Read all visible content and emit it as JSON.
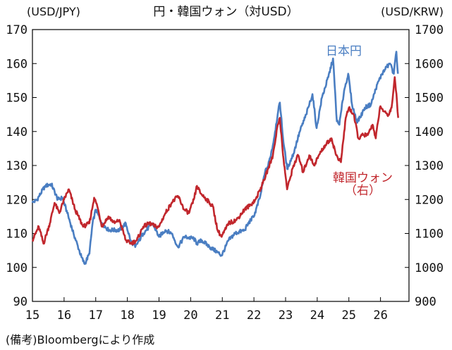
{
  "title": "円・韓国ウォン（対USD）",
  "source": "(備考)Bloombergにより作成",
  "colors": {
    "jpy": "#4a7ec2",
    "krw": "#c1272d",
    "axis": "#000000"
  },
  "chart_data": {
    "type": "line",
    "title": "円・韓国ウォン（対USD）",
    "y_left_label": "(USD/JPY)",
    "y_right_label": "(USD/KRW)",
    "xlim": [
      2015.0,
      2026.9
    ],
    "x_ticks": [
      2015,
      2016,
      2017,
      2018,
      2019,
      2020,
      2021,
      2022,
      2023,
      2024,
      2025,
      2026
    ],
    "x_tick_labels": [
      "15",
      "16",
      "17",
      "18",
      "19",
      "20",
      "21",
      "22",
      "23",
      "24",
      "25",
      "26"
    ],
    "y_left_lim": [
      90,
      170
    ],
    "y_left_ticks": [
      90,
      100,
      110,
      120,
      130,
      140,
      150,
      160,
      170
    ],
    "y_right_lim": [
      900,
      1700
    ],
    "y_right_ticks": [
      900,
      1000,
      1100,
      1200,
      1300,
      1400,
      1500,
      1600,
      1700
    ],
    "grid": false,
    "series": [
      {
        "name": "日本円",
        "axis": "left",
        "color": "#4a7ec2",
        "points": [
          [
            2015.0,
            119.0
          ],
          [
            2015.15,
            120.0
          ],
          [
            2015.4,
            124.0
          ],
          [
            2015.6,
            124.5
          ],
          [
            2015.8,
            120.0
          ],
          [
            2015.95,
            120.5
          ],
          [
            2016.1,
            116.0
          ],
          [
            2016.3,
            110.0
          ],
          [
            2016.55,
            103.0
          ],
          [
            2016.65,
            101.0
          ],
          [
            2016.8,
            104.0
          ],
          [
            2016.9,
            113.0
          ],
          [
            2017.0,
            117.0
          ],
          [
            2017.2,
            113.0
          ],
          [
            2017.4,
            111.0
          ],
          [
            2017.6,
            111.0
          ],
          [
            2017.75,
            111.0
          ],
          [
            2017.95,
            113.0
          ],
          [
            2018.1,
            108.0
          ],
          [
            2018.25,
            106.0
          ],
          [
            2018.5,
            110.0
          ],
          [
            2018.8,
            113.0
          ],
          [
            2019.0,
            109.0
          ],
          [
            2019.2,
            111.0
          ],
          [
            2019.4,
            110.0
          ],
          [
            2019.6,
            106.0
          ],
          [
            2019.8,
            109.0
          ],
          [
            2020.1,
            108.5
          ],
          [
            2020.2,
            107.0
          ],
          [
            2020.35,
            108.0
          ],
          [
            2020.6,
            106.0
          ],
          [
            2020.85,
            104.5
          ],
          [
            2020.98,
            103.5
          ],
          [
            2021.2,
            108.0
          ],
          [
            2021.4,
            110.0
          ],
          [
            2021.7,
            111.0
          ],
          [
            2021.9,
            114.0
          ],
          [
            2022.0,
            115.0
          ],
          [
            2022.2,
            121.0
          ],
          [
            2022.35,
            128.0
          ],
          [
            2022.45,
            130.0
          ],
          [
            2022.6,
            136.0
          ],
          [
            2022.75,
            145.0
          ],
          [
            2022.82,
            148.5
          ],
          [
            2022.92,
            138.0
          ],
          [
            2023.05,
            129.0
          ],
          [
            2023.25,
            133.5
          ],
          [
            2023.45,
            140.0
          ],
          [
            2023.65,
            145.0
          ],
          [
            2023.85,
            151.0
          ],
          [
            2023.98,
            141.0
          ],
          [
            2024.15,
            150.0
          ],
          [
            2024.35,
            156.0
          ],
          [
            2024.5,
            161.5
          ],
          [
            2024.62,
            143.0
          ],
          [
            2024.7,
            142.0
          ],
          [
            2024.85,
            152.0
          ],
          [
            2024.98,
            157.0
          ],
          [
            2025.1,
            148.0
          ],
          [
            2025.25,
            143.0
          ],
          [
            2025.35,
            144.0
          ],
          [
            2025.5,
            147.0
          ],
          [
            2025.7,
            148.0
          ],
          [
            2025.9,
            154.0
          ],
          [
            2026.05,
            157.0
          ],
          [
            2026.2,
            159.0
          ],
          [
            2026.3,
            160.0
          ],
          [
            2026.42,
            157.0
          ],
          [
            2026.5,
            163.5
          ],
          [
            2026.55,
            157.0
          ]
        ]
      },
      {
        "name": "韓国ウォン（右）",
        "axis": "right",
        "color": "#c1272d",
        "points": [
          [
            2015.0,
            1080
          ],
          [
            2015.2,
            1120
          ],
          [
            2015.35,
            1070
          ],
          [
            2015.55,
            1130
          ],
          [
            2015.7,
            1190
          ],
          [
            2015.85,
            1160
          ],
          [
            2016.0,
            1200
          ],
          [
            2016.15,
            1230
          ],
          [
            2016.35,
            1170
          ],
          [
            2016.6,
            1120
          ],
          [
            2016.8,
            1130
          ],
          [
            2016.95,
            1205
          ],
          [
            2017.05,
            1180
          ],
          [
            2017.2,
            1120
          ],
          [
            2017.4,
            1150
          ],
          [
            2017.6,
            1130
          ],
          [
            2017.75,
            1140
          ],
          [
            2017.95,
            1080
          ],
          [
            2018.1,
            1070
          ],
          [
            2018.3,
            1080
          ],
          [
            2018.5,
            1120
          ],
          [
            2018.7,
            1130
          ],
          [
            2018.9,
            1120
          ],
          [
            2019.0,
            1120
          ],
          [
            2019.2,
            1160
          ],
          [
            2019.4,
            1190
          ],
          [
            2019.6,
            1210
          ],
          [
            2019.8,
            1170
          ],
          [
            2019.95,
            1160
          ],
          [
            2020.1,
            1200
          ],
          [
            2020.2,
            1240
          ],
          [
            2020.3,
            1220
          ],
          [
            2020.5,
            1200
          ],
          [
            2020.7,
            1180
          ],
          [
            2020.85,
            1110
          ],
          [
            2020.98,
            1090
          ],
          [
            2021.2,
            1130
          ],
          [
            2021.45,
            1140
          ],
          [
            2021.7,
            1170
          ],
          [
            2021.9,
            1185
          ],
          [
            2022.05,
            1200
          ],
          [
            2022.25,
            1240
          ],
          [
            2022.45,
            1290
          ],
          [
            2022.6,
            1330
          ],
          [
            2022.75,
            1420
          ],
          [
            2022.82,
            1440
          ],
          [
            2022.92,
            1330
          ],
          [
            2023.05,
            1230
          ],
          [
            2023.25,
            1300
          ],
          [
            2023.4,
            1330
          ],
          [
            2023.55,
            1280
          ],
          [
            2023.75,
            1330
          ],
          [
            2023.9,
            1300
          ],
          [
            2024.05,
            1330
          ],
          [
            2024.25,
            1360
          ],
          [
            2024.45,
            1380
          ],
          [
            2024.6,
            1330
          ],
          [
            2024.75,
            1310
          ],
          [
            2024.9,
            1440
          ],
          [
            2025.0,
            1470
          ],
          [
            2025.15,
            1450
          ],
          [
            2025.3,
            1380
          ],
          [
            2025.45,
            1390
          ],
          [
            2025.6,
            1390
          ],
          [
            2025.75,
            1420
          ],
          [
            2025.85,
            1380
          ],
          [
            2025.98,
            1470
          ],
          [
            2026.1,
            1460
          ],
          [
            2026.25,
            1450
          ],
          [
            2026.35,
            1470
          ],
          [
            2026.45,
            1560
          ],
          [
            2026.52,
            1490
          ],
          [
            2026.56,
            1440
          ]
        ]
      }
    ]
  }
}
